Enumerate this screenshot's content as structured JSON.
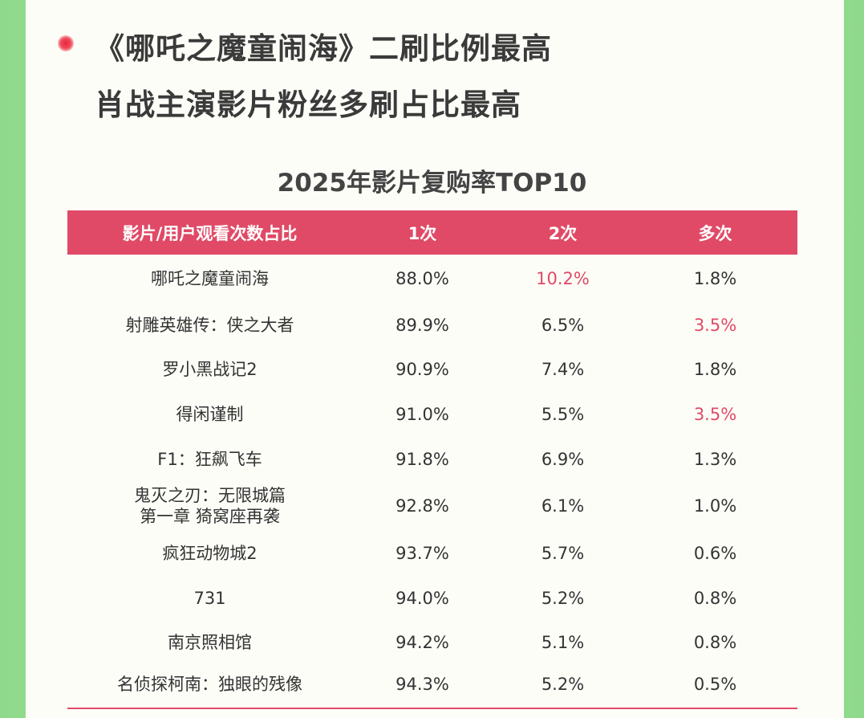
{
  "headline": {
    "line1": "《哪吒之魔童闹海》二刷比例最高",
    "line2": "肖战主演影片粉丝多刷占比最高"
  },
  "chart_data": {
    "type": "table",
    "title": "2025年影片复购率TOP10",
    "columns": [
      "影片/用户观看次数占比",
      "1次",
      "2次",
      "多次"
    ],
    "rows": [
      {
        "film": "哪吒之魔童闹海",
        "once": "88.0%",
        "twice": "10.2%",
        "multi": "1.8%",
        "hl": [
          2
        ]
      },
      {
        "film": "射雕英雄传：侠之大者",
        "once": "89.9%",
        "twice": "6.5%",
        "multi": "3.5%",
        "hl": [
          3
        ]
      },
      {
        "film": "罗小黑战记2",
        "once": "90.9%",
        "twice": "7.4%",
        "multi": "1.8%",
        "hl": []
      },
      {
        "film": "得闲谨制",
        "once": "91.0%",
        "twice": "5.5%",
        "multi": "3.5%",
        "hl": [
          3
        ]
      },
      {
        "film": "F1：狂飙飞车",
        "once": "91.8%",
        "twice": "6.9%",
        "multi": "1.3%",
        "hl": []
      },
      {
        "film": "鬼灭之刃：无限城篇\n第一章 猗窝座再袭",
        "once": "92.8%",
        "twice": "6.1%",
        "multi": "1.0%",
        "hl": []
      },
      {
        "film": "疯狂动物城2",
        "once": "93.7%",
        "twice": "5.7%",
        "multi": "0.6%",
        "hl": []
      },
      {
        "film": "731",
        "once": "94.0%",
        "twice": "5.2%",
        "multi": "0.8%",
        "hl": []
      },
      {
        "film": "南京照相馆",
        "once": "94.2%",
        "twice": "5.1%",
        "multi": "0.8%",
        "hl": []
      },
      {
        "film": "名侦探柯南：独眼的残像",
        "once": "94.3%",
        "twice": "5.2%",
        "multi": "0.5%",
        "hl": []
      }
    ]
  },
  "colors": {
    "accent": "#e04a66",
    "text": "#333333",
    "background": "#fdfdf8",
    "frame": "#8fd98c"
  }
}
